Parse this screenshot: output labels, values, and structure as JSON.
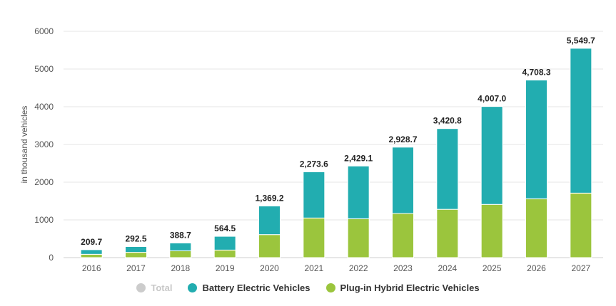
{
  "chart_data": {
    "type": "bar",
    "stacked": true,
    "categories": [
      "2016",
      "2017",
      "2018",
      "2019",
      "2020",
      "2021",
      "2022",
      "2023",
      "2024",
      "2025",
      "2026",
      "2027"
    ],
    "series": [
      {
        "name": "Plug-in Hybrid Electric Vehicles",
        "color": "#9bc53d",
        "values": [
          88,
          140,
          180,
          200,
          610,
          1050,
          1030,
          1170,
          1280,
          1410,
          1560,
          1710
        ]
      },
      {
        "name": "Battery Electric Vehicles",
        "color": "#22adb0",
        "values": [
          121.7,
          152.5,
          208.7,
          364.5,
          759.2,
          1223.6,
          1399.1,
          1758.7,
          2140.8,
          2597.0,
          3148.3,
          3839.7
        ]
      }
    ],
    "totals": [
      "209.7",
      "292.5",
      "388.7",
      "564.5",
      "1,369.2",
      "2,273.6",
      "2,429.1",
      "2,928.7",
      "3,420.8",
      "4,007.0",
      "4,708.3",
      "5,549.7"
    ],
    "ylabel": "in thousand vehicles",
    "ylim": [
      0,
      6000
    ],
    "yticks": [
      0,
      1000,
      2000,
      3000,
      4000,
      5000,
      6000
    ],
    "grid": true,
    "legend_position": "bottom"
  },
  "legend": {
    "items": [
      {
        "label": "Total",
        "color": "#cccccc",
        "hidden": true
      },
      {
        "label": "Battery Electric Vehicles",
        "color": "#22adb0",
        "hidden": false
      },
      {
        "label": "Plug-in Hybrid Electric Vehicles",
        "color": "#9bc53d",
        "hidden": false
      }
    ]
  }
}
